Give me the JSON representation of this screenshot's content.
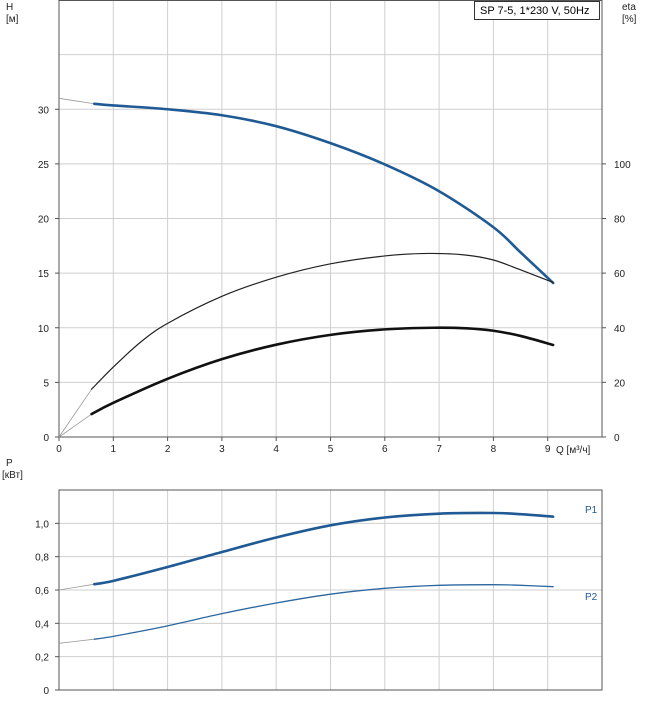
{
  "chart_data": [
    {
      "type": "line",
      "title": "SP 7-5, 1*230 V, 50Hz",
      "x_axis": {
        "label": "Q [м³/ч]",
        "lim": [
          0,
          10
        ],
        "ticks": [
          "0",
          "1",
          "2",
          "3",
          "4",
          "5",
          "6",
          "7",
          "8",
          "9"
        ]
      },
      "y_axis_left": {
        "label_top": "H",
        "label_unit": "[м]",
        "lim": [
          0,
          40
        ],
        "ticks": [
          "0",
          "5",
          "10",
          "15",
          "20",
          "25",
          "30"
        ]
      },
      "y_axis_right": {
        "label_top": "eta",
        "label_unit": "[%]",
        "lim": [
          0,
          160
        ],
        "ticks": [
          "0",
          "20",
          "40",
          "60",
          "80",
          "100"
        ]
      },
      "grid": true,
      "series": [
        {
          "color": "#1f5a94",
          "axis": "left",
          "width": 2.6,
          "extrapolation": [
            [
              0,
              31.0
            ],
            [
              0.65,
              30.5
            ]
          ],
          "points": [
            [
              0.65,
              30.5
            ],
            [
              1,
              30.35
            ],
            [
              2,
              30.0
            ],
            [
              3,
              29.45
            ],
            [
              4,
              28.45
            ],
            [
              5,
              26.9
            ],
            [
              6,
              24.95
            ],
            [
              7,
              22.5
            ],
            [
              8,
              19.2
            ],
            [
              8.5,
              16.9
            ],
            [
              9.1,
              14.1
            ]
          ]
        },
        {
          "color": "#222222",
          "axis": "right",
          "width": 1.2,
          "extrapolation": [
            [
              0,
              0
            ],
            [
              0.6,
              17.5
            ]
          ],
          "points": [
            [
              0.6,
              17.5
            ],
            [
              1,
              25.6
            ],
            [
              1.5,
              34.7
            ],
            [
              2,
              41.6
            ],
            [
              3,
              51.5
            ],
            [
              4,
              58.5
            ],
            [
              5,
              63.4
            ],
            [
              6,
              66.3
            ],
            [
              6.8,
              67.2
            ],
            [
              7.5,
              66.6
            ],
            [
              8,
              64.8
            ],
            [
              8.5,
              61.2
            ],
            [
              9.1,
              56.6
            ]
          ]
        },
        {
          "color": "#111111",
          "axis": "right",
          "width": 2.6,
          "extrapolation": [
            [
              0,
              0
            ],
            [
              0.6,
              8.4
            ]
          ],
          "points": [
            [
              0.6,
              8.4
            ],
            [
              1,
              12.5
            ],
            [
              2,
              21.3
            ],
            [
              3,
              28.5
            ],
            [
              4,
              33.8
            ],
            [
              5,
              37.4
            ],
            [
              6,
              39.4
            ],
            [
              6.9,
              40.0
            ],
            [
              7.5,
              39.8
            ],
            [
              8,
              38.9
            ],
            [
              8.5,
              37.0
            ],
            [
              9.1,
              33.7
            ]
          ]
        }
      ]
    },
    {
      "type": "line",
      "x_axis": {
        "lim": [
          0,
          10
        ]
      },
      "y_axis_left": {
        "label_top": "P",
        "label_unit": "[кВт]",
        "lim": [
          0,
          1.2
        ],
        "ticks": [
          "0",
          "0,2",
          "0,4",
          "0,6",
          "0,8",
          "1,0"
        ]
      },
      "grid": true,
      "series": [
        {
          "name": "P1",
          "color": "#1f5a94",
          "width": 2.6,
          "extrapolation": [
            [
              0,
              0.6
            ],
            [
              0.65,
              0.635
            ]
          ],
          "points": [
            [
              0.65,
              0.635
            ],
            [
              1,
              0.655
            ],
            [
              2,
              0.738
            ],
            [
              3,
              0.828
            ],
            [
              4,
              0.915
            ],
            [
              5,
              0.988
            ],
            [
              6,
              1.035
            ],
            [
              7,
              1.058
            ],
            [
              8,
              1.062
            ],
            [
              8.5,
              1.055
            ],
            [
              9.1,
              1.04
            ]
          ]
        },
        {
          "name": "P2",
          "color": "#2b67a0",
          "width": 1.3,
          "extrapolation": [
            [
              0,
              0.28
            ],
            [
              0.65,
              0.305
            ]
          ],
          "points": [
            [
              0.65,
              0.305
            ],
            [
              1,
              0.322
            ],
            [
              2,
              0.385
            ],
            [
              3,
              0.458
            ],
            [
              4,
              0.522
            ],
            [
              5,
              0.575
            ],
            [
              6,
              0.61
            ],
            [
              7,
              0.628
            ],
            [
              8,
              0.632
            ],
            [
              8.5,
              0.628
            ],
            [
              9.1,
              0.62
            ]
          ]
        }
      ]
    }
  ]
}
